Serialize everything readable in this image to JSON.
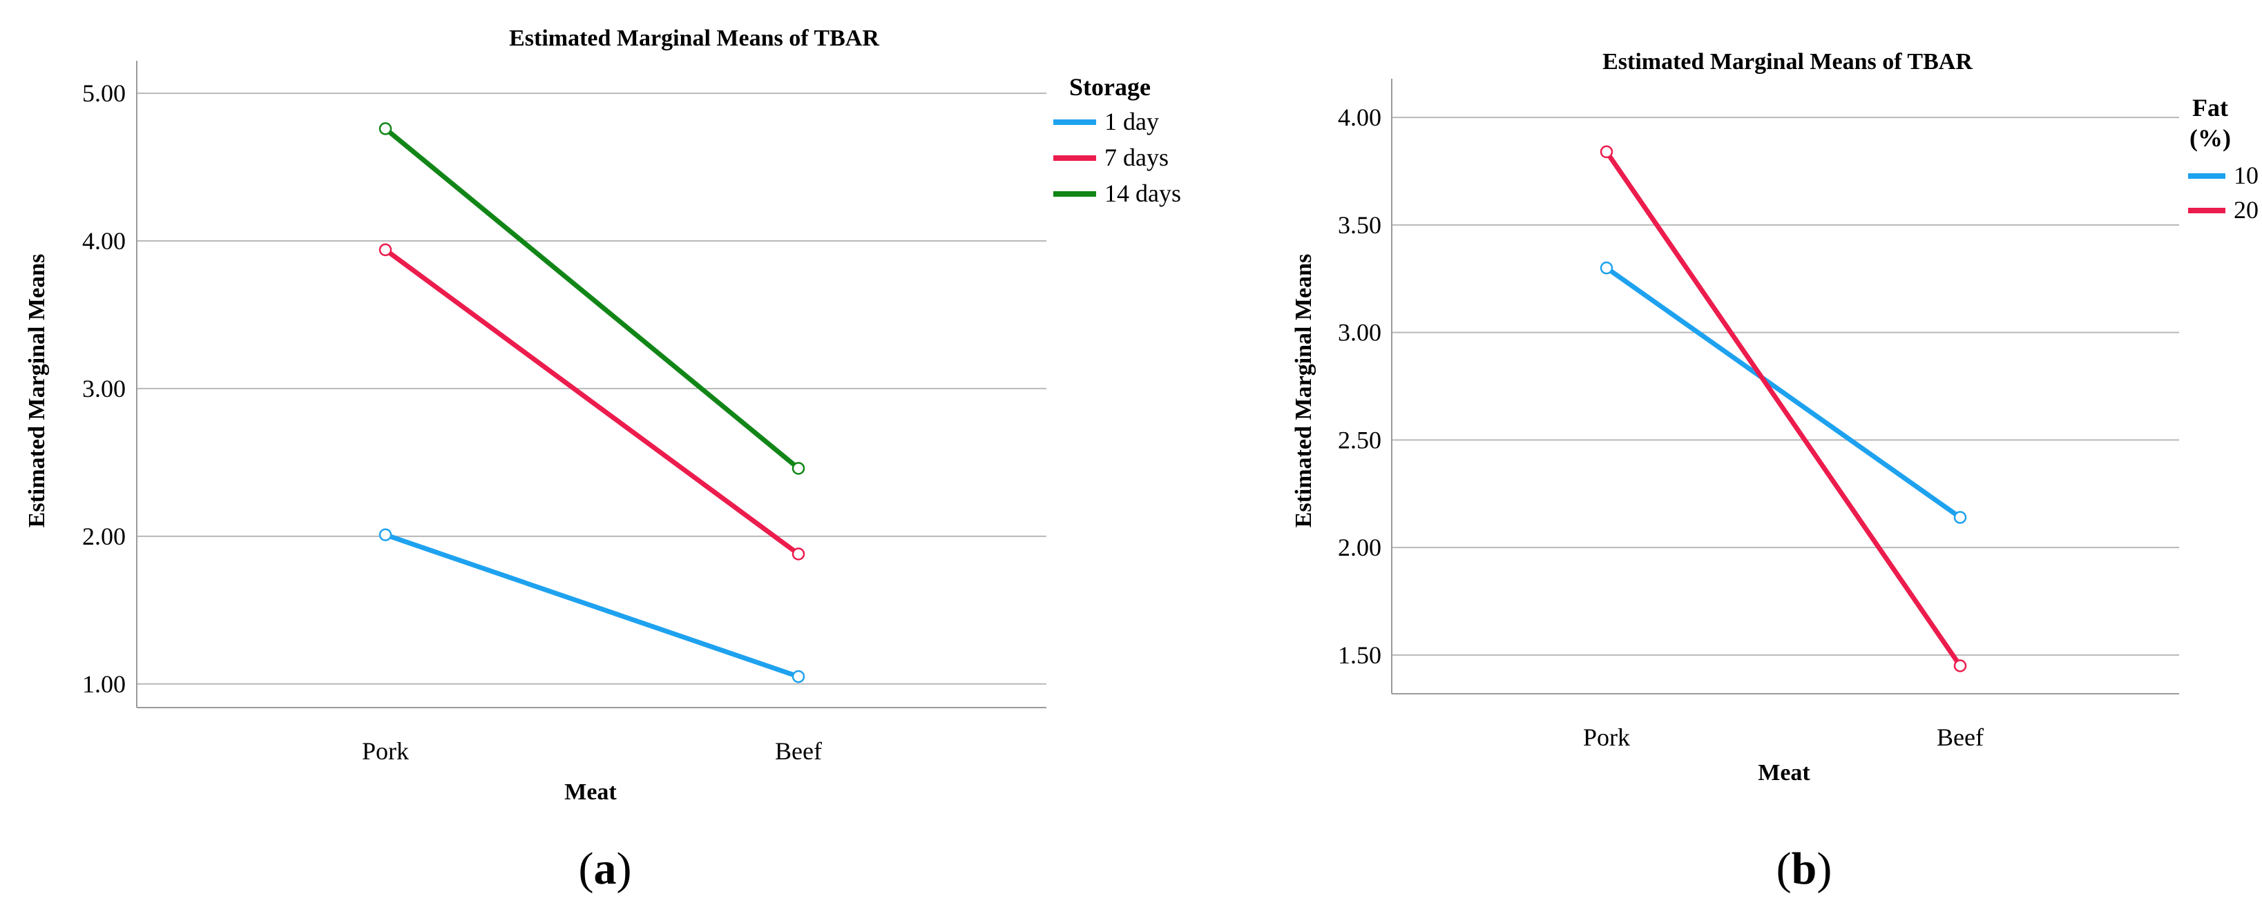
{
  "chart_data": [
    {
      "type": "line",
      "panel": "a",
      "title": "Estimated Marginal Means of TBAR",
      "xlabel": "Meat",
      "ylabel": "Estimated Marginal Means",
      "categories": [
        "Pork",
        "Beef"
      ],
      "ylim": [
        0.84,
        5.22
      ],
      "yticks": [
        1.0,
        2.0,
        3.0,
        4.0,
        5.0
      ],
      "ytick_labels": [
        "1.00",
        "2.00",
        "3.00",
        "4.00",
        "5.00"
      ],
      "legend_title": "Storage",
      "legend_position": "right",
      "series": [
        {
          "name": "1 day",
          "color": "#1ea2ef",
          "values": [
            2.01,
            1.05
          ]
        },
        {
          "name": "7 days",
          "color": "#ec1c4d",
          "values": [
            3.94,
            1.88
          ]
        },
        {
          "name": "14 days",
          "color": "#118617",
          "values": [
            4.76,
            2.46
          ]
        }
      ]
    },
    {
      "type": "line",
      "panel": "b",
      "title": "Estimated Marginal Means of TBAR",
      "xlabel": "Meat",
      "ylabel": "Estimated Marginal Means",
      "categories": [
        "Pork",
        "Beef"
      ],
      "ylim": [
        1.32,
        4.18
      ],
      "yticks": [
        1.5,
        2.0,
        2.5,
        3.0,
        3.5,
        4.0
      ],
      "ytick_labels": [
        "1.50",
        "2.00",
        "2.50",
        "3.00",
        "3.50",
        "4.00"
      ],
      "legend_title_lines": [
        "Fat",
        "(%)"
      ],
      "legend_position": "right",
      "series": [
        {
          "name": "10",
          "color": "#1ea2ef",
          "values": [
            3.3,
            2.14
          ]
        },
        {
          "name": "20",
          "color": "#ec1c4d",
          "values": [
            3.84,
            1.45
          ]
        }
      ]
    }
  ],
  "panel_labels": [
    {
      "open": "(",
      "letter": "a",
      "close": ")"
    },
    {
      "open": "(",
      "letter": "b",
      "close": ")"
    }
  ]
}
